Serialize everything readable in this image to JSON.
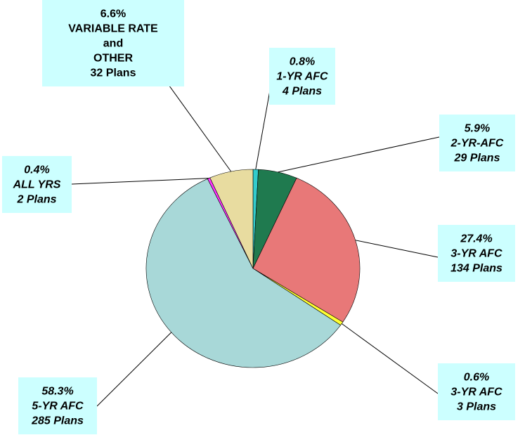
{
  "chart_data": {
    "type": "pie",
    "categories": [
      [
        "1-YR AFC"
      ],
      [
        "2-YR-AFC"
      ],
      [
        "3-YR AFC"
      ],
      [
        "3-YR AFC"
      ],
      [
        "5-YR AFC"
      ],
      [
        "ALL YRS"
      ],
      [
        "VARIABLE RATE",
        "and",
        "OTHER"
      ]
    ],
    "values": [
      0.8,
      5.9,
      27.4,
      0.6,
      58.3,
      0.4,
      6.6
    ],
    "value_labels": [
      "0.8%",
      "5.9%",
      "27.4%",
      "0.6%",
      "58.3%",
      "0.4%",
      "6.6%"
    ],
    "plans": [
      "4 Plans",
      "29 Plans",
      "134 Plans",
      "3 Plans",
      "285 Plans",
      "2 Plans",
      "32 Plans"
    ],
    "colors": [
      "#33cccc",
      "#1f7a4f",
      "#e87878",
      "#ffff33",
      "#a8d8d8",
      "#ff33ff",
      "#e8dca0"
    ]
  }
}
